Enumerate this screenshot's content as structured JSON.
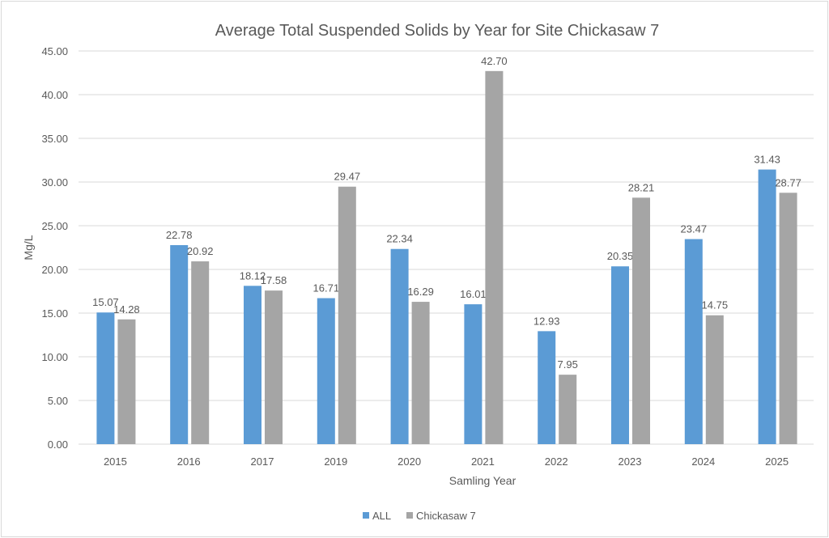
{
  "chart_data": {
    "type": "bar",
    "title": "Average Total Suspended Solids by Year for Site Chickasaw 7",
    "xlabel": "Samling Year",
    "ylabel": "Mg/L",
    "ylim": [
      0,
      45
    ],
    "ytick_step": 5,
    "ytick_labels": [
      "0.00",
      "5.00",
      "10.00",
      "15.00",
      "20.00",
      "25.00",
      "30.00",
      "35.00",
      "40.00",
      "45.00"
    ],
    "categories": [
      "2015",
      "2016",
      "2017",
      "2019",
      "2020",
      "2021",
      "2022",
      "2023",
      "2024",
      "2025"
    ],
    "series": [
      {
        "name": "ALL",
        "color": "#5B9BD5",
        "values": [
          15.07,
          22.78,
          18.12,
          16.71,
          22.34,
          16.01,
          12.93,
          20.35,
          23.47,
          31.43
        ]
      },
      {
        "name": "Chickasaw 7",
        "color": "#A5A5A5",
        "values": [
          14.28,
          20.92,
          17.58,
          29.47,
          16.29,
          42.7,
          7.95,
          28.21,
          14.75,
          28.77
        ]
      }
    ],
    "grid": true,
    "legend": "bottom"
  }
}
